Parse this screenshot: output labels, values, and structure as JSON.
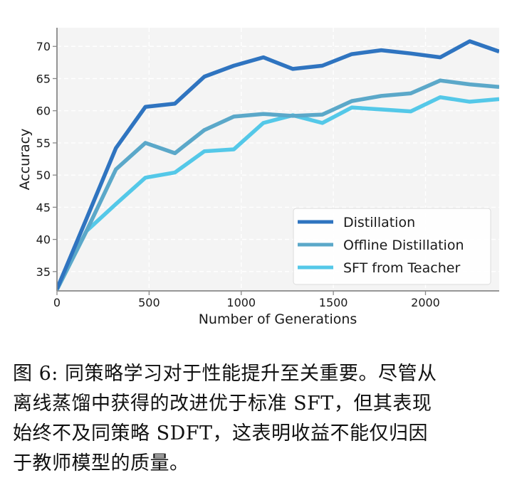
{
  "chart_data": {
    "type": "line",
    "title": "",
    "xlabel": "Number of Generations",
    "ylabel": "Accuracy",
    "xlim": [
      0,
      2400
    ],
    "ylim": [
      32,
      72.9
    ],
    "xticks": [
      0,
      500,
      1000,
      1500,
      2000
    ],
    "yticks": [
      35,
      40,
      45,
      50,
      55,
      60,
      65,
      70
    ],
    "grid": true,
    "legend_position": "lower-right",
    "x": [
      0,
      160,
      320,
      480,
      640,
      800,
      960,
      1120,
      1280,
      1440,
      1600,
      1760,
      1920,
      2080,
      2240,
      2400
    ],
    "series": [
      {
        "name": "Distillation",
        "color": "#2f74c0",
        "values": [
          32.3,
          43.2,
          54.2,
          60.6,
          61.1,
          65.3,
          67.0,
          68.3,
          66.5,
          67.0,
          68.8,
          69.4,
          68.9,
          68.3,
          70.8,
          69.2
        ]
      },
      {
        "name": "Offline Distillation",
        "color": "#5ba8c9",
        "values": [
          32.2,
          41.3,
          50.9,
          55.0,
          53.4,
          57.0,
          59.1,
          59.5,
          59.2,
          59.4,
          61.5,
          62.3,
          62.7,
          64.7,
          64.1,
          63.7
        ]
      },
      {
        "name": "SFT from Teacher",
        "color": "#54c8e8",
        "values": [
          32.2,
          41.3,
          45.5,
          49.6,
          50.4,
          53.7,
          54.0,
          58.1,
          59.3,
          58.1,
          60.5,
          60.2,
          59.9,
          62.1,
          61.4,
          61.8
        ]
      }
    ]
  },
  "caption": {
    "lines": [
      "图 6: 同策略学习对于性能提升至关重要。尽管从",
      "离线蒸馏中获得的改进优于标准 SFT，但其表现",
      "始终不及同策略 SDFT，这表明收益不能仅归因",
      "于教师模型的质量。"
    ]
  }
}
